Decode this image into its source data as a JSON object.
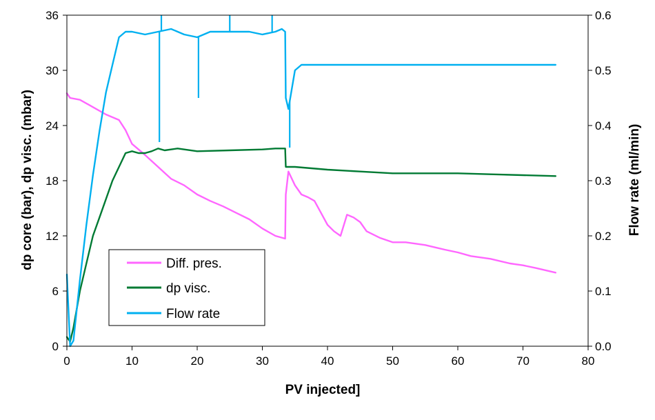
{
  "chart_data": {
    "type": "line",
    "xlabel": "PV injected]",
    "ylabel_left": "dp core (bar), dp visc. (mbar)",
    "ylabel_right": "Flow rate (ml/min)",
    "xlim": [
      0,
      80
    ],
    "ylim_left": [
      0,
      36
    ],
    "ylim_right": [
      0.0,
      0.6
    ],
    "x_ticks": [
      "0",
      "10",
      "20",
      "30",
      "40",
      "50",
      "60",
      "70",
      "80"
    ],
    "y_left_ticks": [
      "0",
      "6",
      "12",
      "18",
      "24",
      "30",
      "36"
    ],
    "y_right_ticks": [
      "0.0",
      "0.1",
      "0.2",
      "0.3",
      "0.4",
      "0.5",
      "0.6"
    ],
    "grid": false,
    "legend_position": "bottom-left",
    "series": [
      {
        "name": "Diff. pres.",
        "axis": "left",
        "color": "#FF66FF",
        "x": [
          0,
          0.5,
          2,
          4,
          6,
          8,
          9,
          10,
          12,
          14,
          16,
          18,
          20,
          22,
          24,
          26,
          28,
          30,
          32,
          33.5,
          33.6,
          34,
          35,
          36,
          37,
          38,
          39,
          40,
          41,
          42,
          43,
          44,
          45,
          46,
          48,
          50,
          52,
          55,
          58,
          60,
          62,
          65,
          68,
          70,
          72,
          75
        ],
        "y": [
          27.5,
          27,
          26.8,
          26,
          25.2,
          24.6,
          23.5,
          22,
          20.8,
          19.5,
          18.2,
          17.5,
          16.5,
          15.8,
          15.2,
          14.5,
          13.8,
          12.8,
          12,
          11.7,
          16.5,
          19,
          17.5,
          16.5,
          16.2,
          15.8,
          14.5,
          13.2,
          12.5,
          12.0,
          14.3,
          14.0,
          13.5,
          12.5,
          11.8,
          11.3,
          11.3,
          11.0,
          10.5,
          10.2,
          9.8,
          9.5,
          9.0,
          8.8,
          8.5,
          8.0
        ]
      },
      {
        "name": "dp visc.",
        "axis": "left",
        "color": "#007A33",
        "x": [
          0,
          0.5,
          1,
          2,
          3,
          4,
          5,
          6,
          7,
          8,
          9,
          10,
          11,
          12,
          13,
          14,
          15,
          17,
          20,
          25,
          30,
          32,
          33.5,
          33.6,
          35,
          40,
          45,
          50,
          55,
          60,
          65,
          70,
          75
        ],
        "y": [
          1,
          0.5,
          2,
          6,
          9,
          12,
          14,
          16,
          18,
          19.5,
          21,
          21.2,
          21.0,
          21.0,
          21.2,
          21.5,
          21.3,
          21.5,
          21.2,
          21.3,
          21.4,
          21.5,
          21.5,
          19.5,
          19.5,
          19.2,
          19.0,
          18.8,
          18.8,
          18.8,
          18.7,
          18.6,
          18.5
        ]
      },
      {
        "name": "Flow rate",
        "axis": "right",
        "color": "#00B0F0",
        "x": [
          0,
          0.5,
          1,
          2,
          3,
          4,
          5,
          6,
          7,
          8,
          9,
          10,
          12,
          14,
          16,
          18,
          20,
          22,
          24,
          26,
          28,
          30,
          32,
          33,
          33.5,
          33.6,
          34,
          35,
          36,
          40,
          45,
          50,
          55,
          60,
          65,
          70,
          75
        ],
        "y": [
          0.13,
          0.0,
          0.01,
          0.12,
          0.22,
          0.31,
          0.39,
          0.46,
          0.51,
          0.56,
          0.57,
          0.57,
          0.565,
          0.57,
          0.575,
          0.565,
          0.56,
          0.57,
          0.57,
          0.57,
          0.57,
          0.565,
          0.57,
          0.575,
          0.57,
          0.45,
          0.43,
          0.5,
          0.51,
          0.51,
          0.51,
          0.51,
          0.51,
          0.51,
          0.51,
          0.51,
          0.51
        ]
      }
    ],
    "spikes": [
      {
        "series": "Flow rate",
        "x": 14.2,
        "y": 0.37
      },
      {
        "series": "Flow rate",
        "x": 14.5,
        "y": 0.6
      },
      {
        "series": "Flow rate",
        "x": 20.2,
        "y": 0.45
      },
      {
        "series": "Flow rate",
        "x": 25.0,
        "y": 0.6
      },
      {
        "series": "Flow rate",
        "x": 31.5,
        "y": 0.6
      },
      {
        "series": "Flow rate",
        "x": 34.2,
        "y": 0.36
      }
    ]
  }
}
